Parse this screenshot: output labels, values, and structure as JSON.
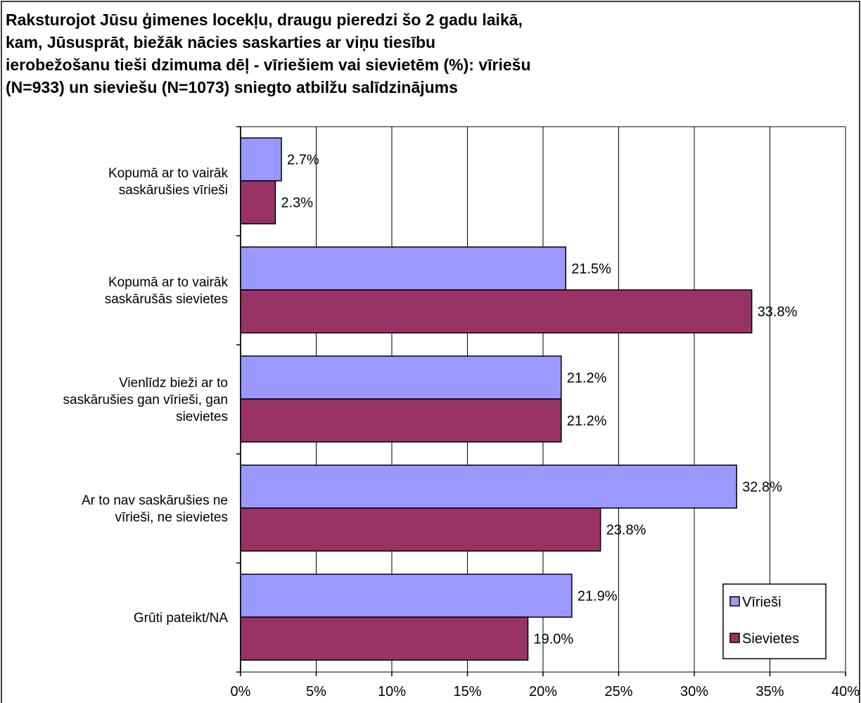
{
  "chart_data": {
    "type": "bar",
    "orientation": "horizontal",
    "title_lines": [
      "Raksturojot Jūsu ģimenes locekļu, draugu pieredzi šo 2 gadu laikā,",
      "kam, Jūsusprāt, biežāk nācies saskarties ar viņu tiesību",
      "ierobežošanu tieši dzimuma dēļ - vīriešiem vai sievietēm (%): vīriešu",
      "(N=933) un sieviešu (N=1073) sniegto atbilžu salīdzinājums"
    ],
    "categories": [
      [
        "Kopumā ar to vairāk",
        "saskārušies vīrieši"
      ],
      [
        "Kopumā ar to vairāk",
        "saskārušās sievietes"
      ],
      [
        "Vienlīdz bieži ar to",
        "saskārušies gan vīrieši, gan",
        "sievietes"
      ],
      [
        "Ar to nav saskārušies ne",
        "vīrieši, ne sievietes"
      ],
      [
        "Grūti pateikt/NA"
      ]
    ],
    "series": [
      {
        "name": "Vīrieši",
        "color": "#9999ff",
        "values": [
          2.7,
          21.5,
          21.2,
          32.8,
          21.9
        ],
        "labels": [
          "2.7%",
          "21.5%",
          "21.2%",
          "32.8%",
          "21.9%"
        ]
      },
      {
        "name": "Sievietes",
        "color": "#993366",
        "values": [
          2.3,
          33.8,
          21.2,
          23.8,
          19.0
        ],
        "labels": [
          "2.3%",
          "33.8%",
          "21.2%",
          "23.8%",
          "19.0%"
        ]
      }
    ],
    "xlim": [
      0,
      40
    ],
    "xticks": [
      0,
      5,
      10,
      15,
      20,
      25,
      30,
      35,
      40
    ],
    "xtick_labels": [
      "0%",
      "5%",
      "10%",
      "15%",
      "20%",
      "25%",
      "30%",
      "35%",
      "40%"
    ],
    "grid": "vertical",
    "legend_position": "bottom-right",
    "gridline_color": "#000000",
    "axis_color": "#808080"
  }
}
